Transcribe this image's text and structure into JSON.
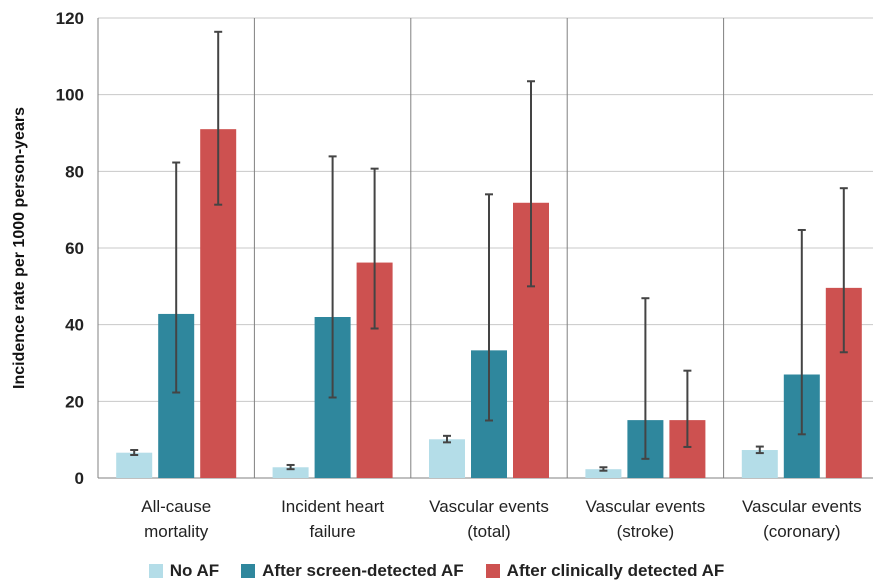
{
  "chart_data": {
    "type": "bar",
    "title": "",
    "xlabel": "",
    "ylabel": "Incidence rate per 1000 person-years",
    "ylim": [
      0,
      120
    ],
    "yticks": [
      0,
      20,
      40,
      60,
      80,
      100,
      120
    ],
    "grid": true,
    "legend_position": "bottom",
    "categories": [
      [
        "All-cause",
        "mortality"
      ],
      [
        "Incident heart",
        "failure"
      ],
      [
        "Vascular events",
        "(total)"
      ],
      [
        "Vascular events",
        "(stroke)"
      ],
      [
        "Vascular events",
        "(coronary)"
      ]
    ],
    "series": [
      {
        "name": "No AF",
        "color": "#b4dde8",
        "values": [
          6.6,
          2.8,
          10.1,
          2.3,
          7.3
        ],
        "error_low": [
          6.0,
          2.3,
          9.3,
          1.9,
          6.5
        ],
        "error_high": [
          7.3,
          3.4,
          11.0,
          2.8,
          8.2
        ]
      },
      {
        "name": "After screen-detected AF",
        "color": "#2f879d",
        "values": [
          42.8,
          42.0,
          33.3,
          15.1,
          27.0
        ],
        "error_low": [
          22.3,
          21.0,
          15.0,
          5.0,
          11.4
        ],
        "error_high": [
          82.3,
          83.9,
          74.0,
          46.9,
          64.7
        ]
      },
      {
        "name": "After clinically detected AF",
        "color": "#cd5150",
        "values": [
          91.0,
          56.2,
          71.8,
          15.1,
          49.6
        ],
        "error_low": [
          71.3,
          39.0,
          50.0,
          8.1,
          32.8
        ],
        "error_high": [
          116.4,
          80.7,
          103.5,
          28.0,
          75.6
        ]
      }
    ]
  }
}
